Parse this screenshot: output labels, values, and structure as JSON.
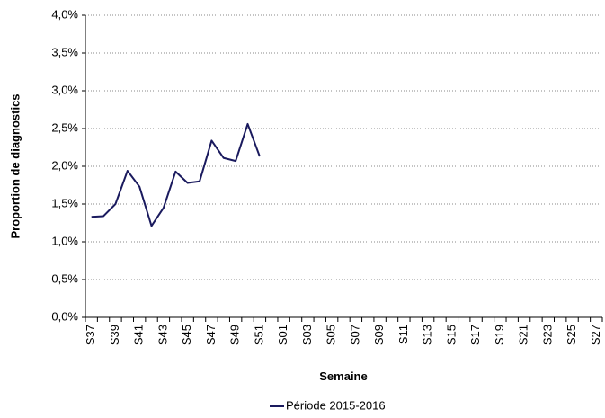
{
  "chart_data": {
    "type": "line",
    "ylabel": "Proportion de diagnostics",
    "xlabel": "Semaine",
    "categories": [
      "S37",
      null,
      "S39",
      null,
      "S41",
      null,
      "S43",
      null,
      "S45",
      null,
      "S47",
      null,
      "S49",
      null,
      "S51",
      null,
      "S01",
      null,
      "S03",
      null,
      "S05",
      null,
      "S07",
      null,
      "S09",
      null,
      "S11",
      null,
      "S13",
      null,
      "S15",
      null,
      "S17",
      null,
      "S19",
      null,
      "S21",
      null,
      "S23",
      null,
      "S25",
      null,
      "S27"
    ],
    "series": [
      {
        "name": "Période 2015-2016",
        "color": "#1a1a5e",
        "values": [
          1.33,
          1.34,
          1.5,
          1.94,
          1.73,
          1.21,
          1.45,
          1.93,
          1.78,
          1.8,
          2.34,
          2.11,
          2.07,
          2.56,
          2.13,
          null,
          null,
          null,
          null,
          null,
          null,
          null,
          null,
          null,
          null,
          null,
          null,
          null,
          null,
          null,
          null,
          null,
          null,
          null,
          null,
          null,
          null,
          null,
          null,
          null,
          null,
          null,
          null
        ]
      }
    ],
    "ylim": [
      0,
      4
    ],
    "yticks": [
      {
        "value": 0,
        "label": "0,0%"
      },
      {
        "value": 0.5,
        "label": "0,5%"
      },
      {
        "value": 1,
        "label": "1,0%"
      },
      {
        "value": 1.5,
        "label": "1,5%"
      },
      {
        "value": 2,
        "label": "2,0%"
      },
      {
        "value": 2.5,
        "label": "2,5%"
      },
      {
        "value": 3,
        "label": "3,0%"
      },
      {
        "value": 3.5,
        "label": "3,5%"
      },
      {
        "value": 4,
        "label": "4,0%"
      }
    ],
    "grid": true,
    "legend": "bottom"
  }
}
